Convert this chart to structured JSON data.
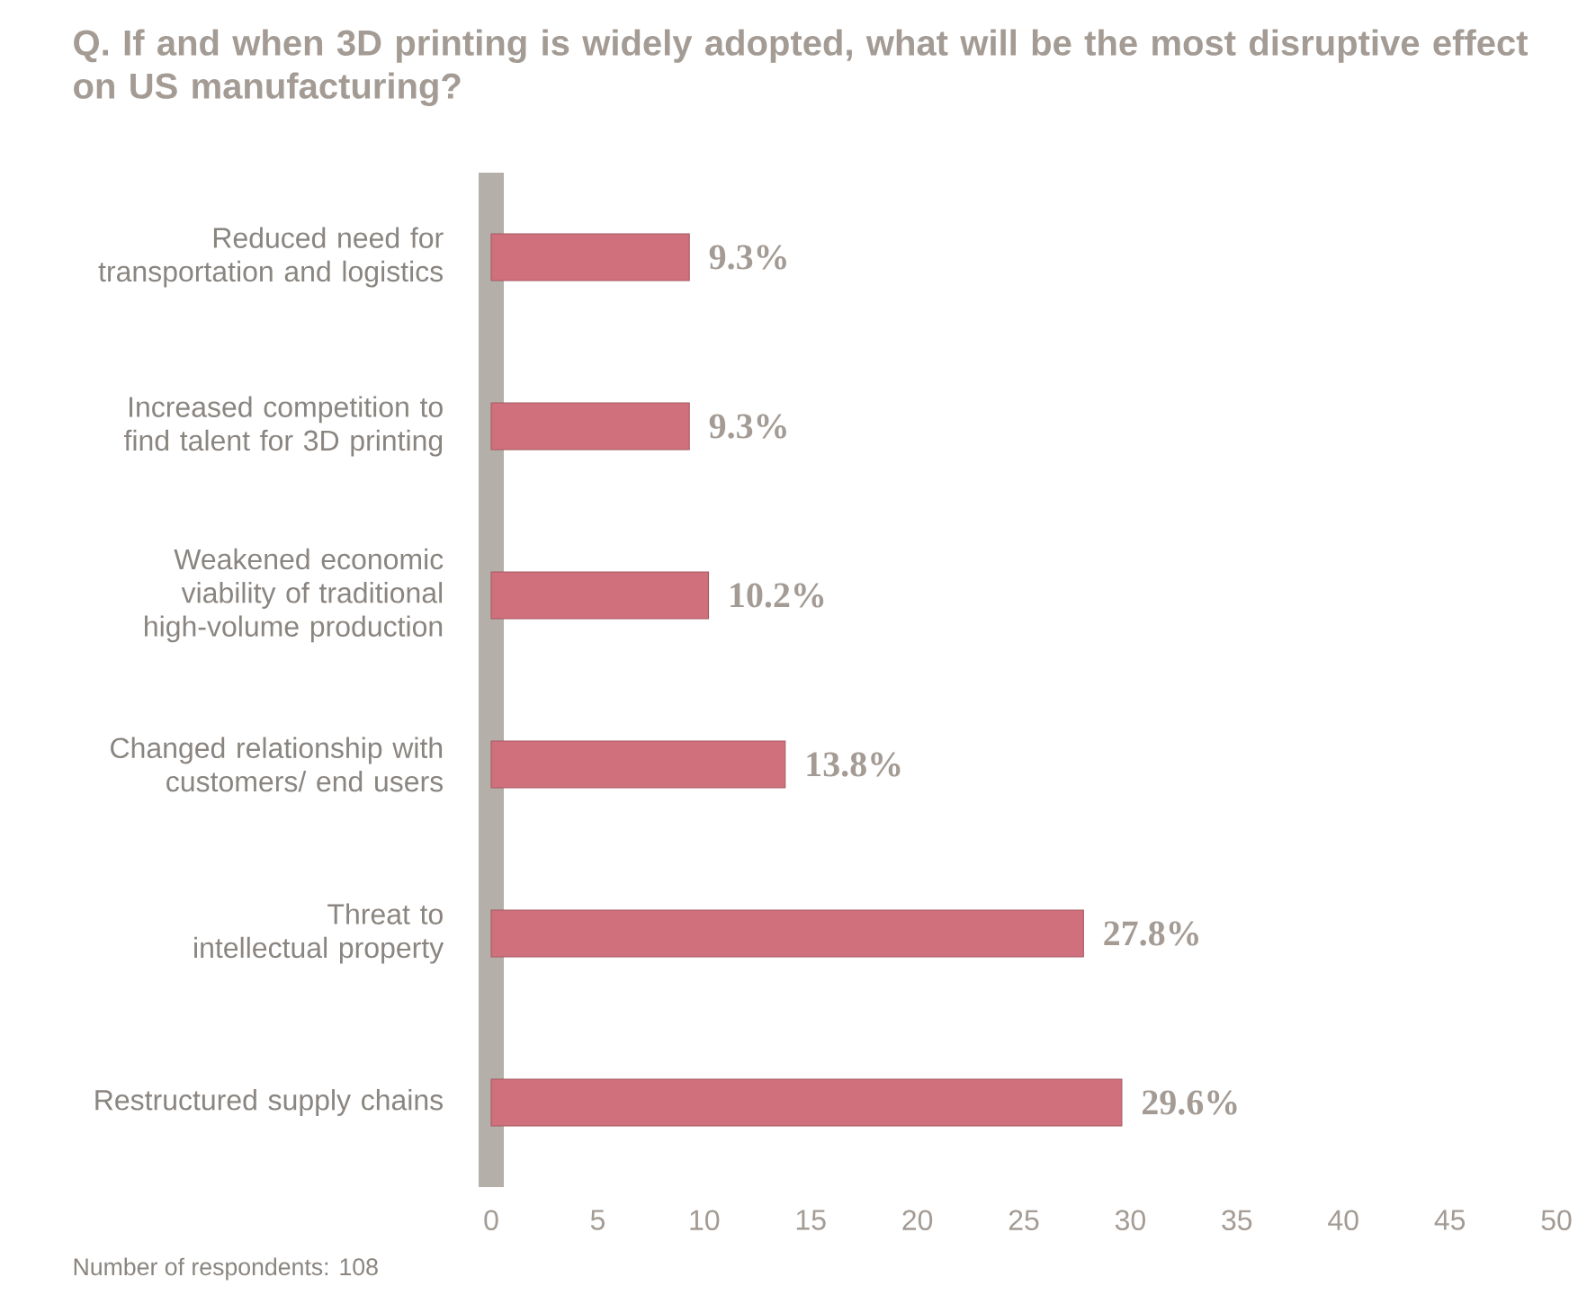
{
  "chart_data": {
    "type": "bar",
    "orientation": "horizontal",
    "title": "Q. If and when 3D printing is widely adopted, what will be the most disruptive effect on US manufacturing?",
    "categories": [
      "Reduced need for transportation and logistics",
      "Increased competition to find talent for 3D printing",
      "Weakened economic viability of traditional high-volume production",
      "Changed relationship with customers/ end users",
      "Threat to intellectual property",
      "Restructured supply chains"
    ],
    "values": [
      9.3,
      9.3,
      10.2,
      13.8,
      27.8,
      29.6
    ],
    "value_labels": [
      "9.3%",
      "9.3%",
      "10.2%",
      "13.8%",
      "27.8%",
      "29.6%"
    ],
    "color": "#d0707c",
    "xlim": [
      0,
      50
    ],
    "xticks": [
      0,
      5,
      10,
      15,
      20,
      25,
      30,
      35,
      40,
      45,
      50
    ],
    "annotations": [
      "Number of respondents: 108"
    ]
  }
}
